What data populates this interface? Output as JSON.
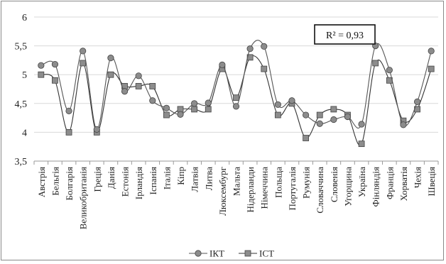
{
  "chart_data": {
    "type": "line",
    "smooth": true,
    "categories": [
      "Австрія",
      "Бельгія",
      "Болгарія",
      "Великобританія",
      "Греція",
      "Данія",
      "Естонія",
      "Ірландія",
      "Іспанія",
      "Італія",
      "Кіпр",
      "Латвія",
      "Литва",
      "Люксембург",
      "Мальта",
      "Нідерланди",
      "Німеччина",
      "Польща",
      "Португалія",
      "Румунія",
      "Словаччина",
      "Словенія",
      "Угорщина",
      "Україна",
      "Фінляндія",
      "Франція",
      "Хорватія",
      "Чехія",
      "Швеція"
    ],
    "series": [
      {
        "name": "ІКТ",
        "marker": "circle",
        "color": "#555555",
        "marker_fill": "#8c8c8c",
        "values": [
          5.16,
          5.18,
          4.37,
          5.41,
          4.05,
          5.29,
          4.71,
          4.98,
          4.55,
          4.42,
          4.31,
          4.5,
          4.51,
          5.17,
          4.45,
          5.45,
          5.49,
          4.48,
          4.55,
          4.3,
          4.15,
          4.22,
          4.27,
          4.14,
          5.5,
          5.08,
          4.13,
          4.53,
          5.41
        ]
      },
      {
        "name": "ІСТ",
        "marker": "square",
        "color": "#333333",
        "marker_fill": "#8c8c8c",
        "values": [
          5.0,
          4.9,
          4.0,
          5.2,
          4.0,
          5.0,
          4.8,
          4.8,
          4.8,
          4.3,
          4.4,
          4.4,
          4.4,
          5.1,
          4.6,
          5.3,
          5.1,
          4.3,
          4.5,
          3.9,
          4.3,
          4.4,
          4.3,
          3.8,
          5.2,
          4.9,
          4.2,
          4.4,
          5.1
        ]
      }
    ],
    "y_ticks": [
      "3,5",
      "4",
      "4,5",
      "5",
      "5,5",
      "6"
    ],
    "ylim": [
      3.5,
      6
    ],
    "grid": "horizontal",
    "legend_position": "bottom",
    "annotation": "R² = 0,93"
  }
}
